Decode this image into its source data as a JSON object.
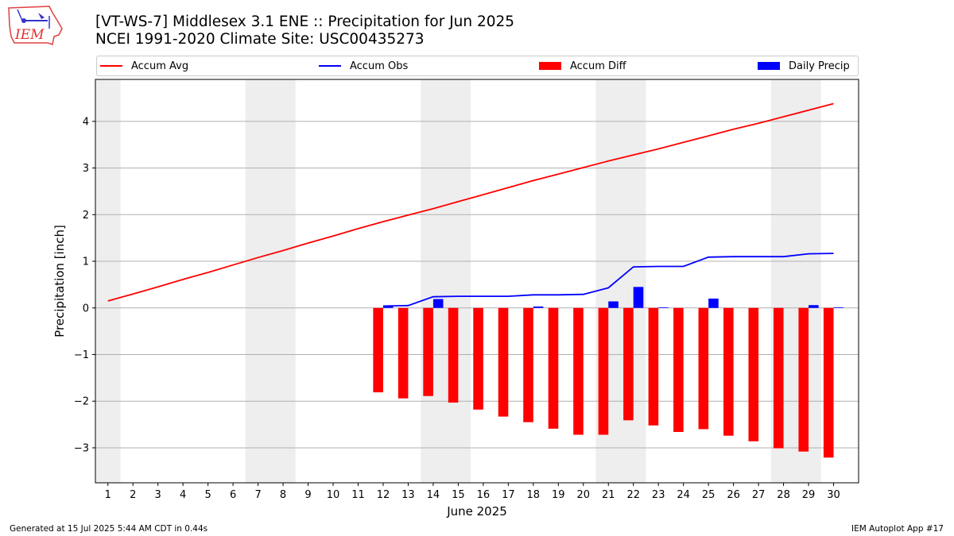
{
  "header": {
    "logo_text": "IEM",
    "title_line1": "[VT-WS-7] Middlesex 3.1 ENE :: Precipitation for Jun 2025",
    "title_line2": "NCEI 1991-2020 Climate Site: USC00435273"
  },
  "legend": [
    {
      "label": "Accum Avg",
      "kind": "line",
      "color": "#ff0000"
    },
    {
      "label": "Accum Obs",
      "kind": "line",
      "color": "#0000ff"
    },
    {
      "label": "Accum Diff",
      "kind": "box",
      "color": "#ff0000"
    },
    {
      "label": "Daily Precip",
      "kind": "box",
      "color": "#0000ff"
    }
  ],
  "footer": {
    "left": "Generated at 15 Jul 2025 5:44 AM CDT in 0.44s",
    "right": "IEM Autoplot App #17"
  },
  "chart_data": {
    "type": "bar",
    "xlabel": "June 2025",
    "ylabel": "Precipitation [inch]",
    "xlim": [
      0.5,
      31
    ],
    "ylim": [
      -3.75,
      4.9
    ],
    "yticks": [
      4,
      3,
      2,
      1,
      0,
      -1,
      -2,
      -3
    ],
    "ytick_labels": [
      "4",
      "3",
      "2",
      "1",
      "0",
      "−1",
      "−2",
      "−3"
    ],
    "x": [
      1,
      2,
      3,
      4,
      5,
      6,
      7,
      8,
      9,
      10,
      11,
      12,
      13,
      14,
      15,
      16,
      17,
      18,
      19,
      20,
      21,
      22,
      23,
      24,
      25,
      26,
      27,
      28,
      29,
      30
    ],
    "weekend_ranges": [
      [
        0.5,
        1.5
      ],
      [
        6.5,
        8.5
      ],
      [
        13.5,
        15.5
      ],
      [
        20.5,
        22.5
      ],
      [
        27.5,
        29.5
      ]
    ],
    "grid": true,
    "series": [
      {
        "name": "Accum Avg",
        "type": "line",
        "color": "#ff0000",
        "values": [
          0.15,
          0.3,
          0.45,
          0.61,
          0.76,
          0.92,
          1.08,
          1.23,
          1.39,
          1.54,
          1.7,
          1.85,
          1.99,
          2.13,
          2.28,
          2.43,
          2.58,
          2.73,
          2.87,
          3.01,
          3.15,
          3.28,
          3.41,
          3.55,
          3.69,
          3.83,
          3.96,
          4.1,
          4.24,
          4.38
        ]
      },
      {
        "name": "Accum Obs",
        "type": "line",
        "color": "#0000ff",
        "x": [
          12,
          13,
          14,
          15,
          16,
          17,
          18,
          19,
          20,
          21,
          22,
          23,
          24,
          25,
          26,
          27,
          28,
          29,
          30
        ],
        "values": [
          0.04,
          0.05,
          0.24,
          0.25,
          0.25,
          0.25,
          0.28,
          0.28,
          0.29,
          0.43,
          0.88,
          0.89,
          0.89,
          1.09,
          1.1,
          1.1,
          1.1,
          1.16,
          1.17
        ]
      },
      {
        "name": "Accum Diff",
        "type": "bar",
        "color": "#ff0000",
        "x": [
          12,
          13,
          14,
          15,
          16,
          17,
          18,
          19,
          20,
          21,
          22,
          23,
          24,
          25,
          26,
          27,
          28,
          29,
          30
        ],
        "values": [
          -1.81,
          -1.94,
          -1.89,
          -2.03,
          -2.18,
          -2.33,
          -2.45,
          -2.59,
          -2.72,
          -2.72,
          -2.41,
          -2.52,
          -2.66,
          -2.6,
          -2.74,
          -2.86,
          -3.01,
          -3.08,
          -3.21
        ]
      },
      {
        "name": "Daily Precip",
        "type": "bar",
        "color": "#0000ff",
        "x": [
          12,
          14,
          18,
          21,
          22,
          23,
          25,
          29,
          30
        ],
        "values": [
          0.04,
          0.19,
          0.03,
          0.14,
          0.45,
          0.01,
          0.2,
          0.06,
          0.01
        ]
      }
    ]
  }
}
